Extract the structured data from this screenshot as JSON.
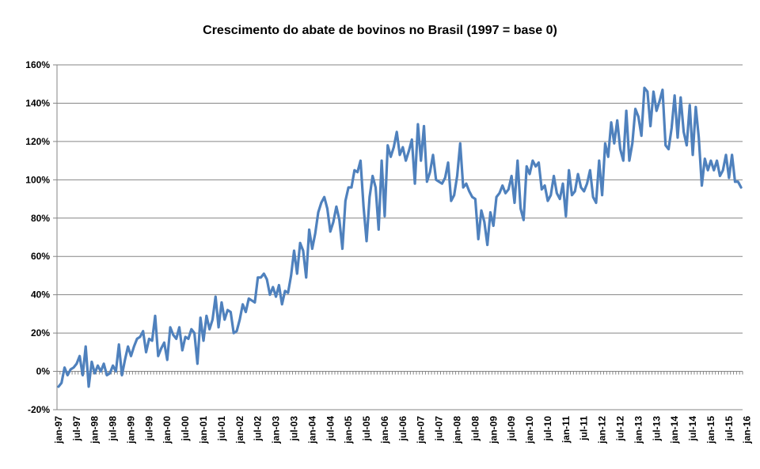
{
  "chart_data": {
    "type": "line",
    "title": "Crescimento do abate de bovinos no Brasil (1997 = base 0)",
    "xlabel": "",
    "ylabel": "",
    "ylim": [
      -20,
      160
    ],
    "y_ticks": [
      -20,
      0,
      20,
      40,
      60,
      80,
      100,
      120,
      140,
      160
    ],
    "y_tick_labels": [
      "-20%",
      "0%",
      "20%",
      "40%",
      "60%",
      "80%",
      "100%",
      "120%",
      "140%",
      "160%"
    ],
    "x_tick_labels": [
      "jan-97",
      "jul-97",
      "jan-98",
      "jul-98",
      "jan-99",
      "jul-99",
      "jan-00",
      "jul-00",
      "jan-01",
      "jul-01",
      "jan-02",
      "jul-02",
      "jan-03",
      "jul-03",
      "jan-04",
      "jul-04",
      "jan-05",
      "jul-05",
      "jan-06",
      "jul-06",
      "jan-07",
      "jul-07",
      "jan-08",
      "jul-08",
      "jan-09",
      "jul-09",
      "jan-10",
      "jul-10",
      "jan-11",
      "jul-11",
      "jan-12",
      "jul-12",
      "jan-13",
      "jul-13",
      "jan-14",
      "jul-14",
      "jan-15",
      "jul-15",
      "jan-16"
    ],
    "line_color": "#4F81BD",
    "series": [
      {
        "name": "Crescimento do abate",
        "start": "jan-97",
        "frequency": "monthly",
        "values": [
          -8,
          -6,
          2,
          -2,
          1,
          2,
          4,
          8,
          -2,
          13,
          -8,
          5,
          -1,
          3,
          0,
          4,
          -2,
          -1,
          3,
          0,
          14,
          -2,
          6,
          13,
          8,
          13,
          17,
          18,
          21,
          10,
          17,
          16,
          29,
          8,
          12,
          15,
          6,
          23,
          19,
          17,
          23,
          11,
          18,
          17,
          22,
          20,
          4,
          28,
          16,
          29,
          22,
          27,
          39,
          23,
          36,
          27,
          32,
          31,
          20,
          21,
          27,
          35,
          31,
          38,
          37,
          36,
          49,
          49,
          51,
          48,
          40,
          44,
          39,
          45,
          35,
          42,
          41,
          50,
          63,
          51,
          67,
          63,
          49,
          74,
          64,
          72,
          83,
          88,
          91,
          85,
          73,
          78,
          86,
          79,
          64,
          89,
          96,
          96,
          105,
          104,
          110,
          86,
          68,
          91,
          102,
          96,
          74,
          110,
          81,
          118,
          112,
          117,
          125,
          113,
          117,
          110,
          115,
          121,
          98,
          129,
          110,
          128,
          99,
          104,
          113,
          100,
          99,
          98,
          101,
          109,
          89,
          92,
          102,
          119,
          96,
          98,
          94,
          91,
          90,
          69,
          84,
          78,
          66,
          83,
          76,
          91,
          93,
          97,
          93,
          95,
          102,
          88,
          110,
          85,
          79,
          107,
          103,
          110,
          107,
          109,
          95,
          97,
          89,
          92,
          102,
          93,
          90,
          98,
          81,
          105,
          92,
          94,
          103,
          96,
          94,
          98,
          105,
          91,
          88,
          110,
          92,
          119,
          112,
          130,
          119,
          131,
          116,
          110,
          136,
          110,
          119,
          137,
          133,
          123,
          148,
          146,
          128,
          146,
          136,
          141,
          147,
          118,
          116,
          127,
          144,
          122,
          143,
          125,
          118,
          139,
          113,
          138,
          122,
          97,
          111,
          105,
          110,
          105,
          110,
          102,
          105,
          113,
          101,
          113,
          99,
          99,
          96
        ]
      }
    ]
  }
}
